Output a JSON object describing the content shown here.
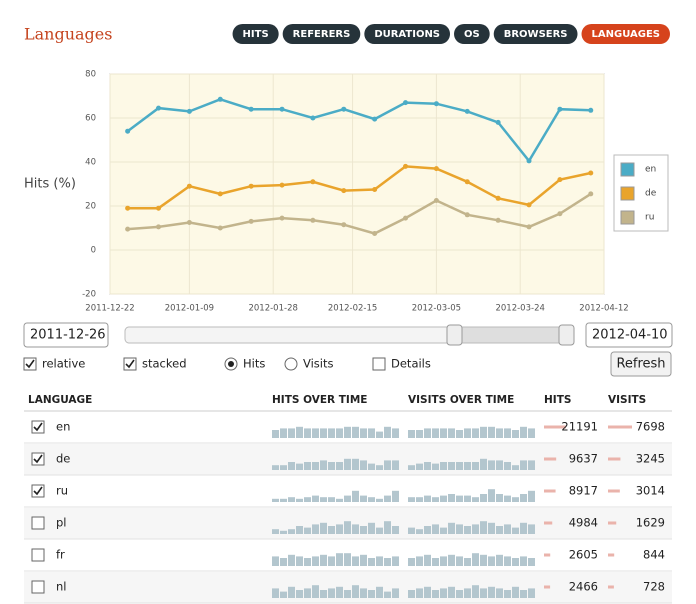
{
  "header": {
    "title": "Languages",
    "tabs": [
      "HITS",
      "REFERERS",
      "DURATIONS",
      "OS",
      "BROWSERS",
      "LANGUAGES"
    ],
    "active_tab": 5
  },
  "chart_data": {
    "type": "line",
    "ylabel": "Hits (%)",
    "x": [
      "2011-12-26",
      "2012-01-02",
      "2012-01-09",
      "2012-01-16",
      "2012-01-23",
      "2012-01-30",
      "2012-02-06",
      "2012-02-13",
      "2012-02-20",
      "2012-02-27",
      "2012-03-05",
      "2012-03-12",
      "2012-03-19",
      "2012-03-26",
      "2012-04-02",
      "2012-04-09"
    ],
    "xlim": [
      "2011-12-22",
      "2012-04-12"
    ],
    "xticks": [
      "2011-12-22",
      "2012-01-09",
      "2012-01-28",
      "2012-02-15",
      "2012-03-05",
      "2012-03-24",
      "2012-04-12"
    ],
    "ylim": [
      -20,
      80
    ],
    "yticks": [
      -20,
      0,
      20,
      40,
      60,
      80
    ],
    "grid": true,
    "legend": "right",
    "series": [
      {
        "name": "en",
        "color": "#4bacc6",
        "values": [
          54,
          64.5,
          63,
          68.5,
          64,
          64,
          60,
          64,
          59.5,
          67,
          66.5,
          63,
          58,
          40.5,
          64,
          63.5
        ]
      },
      {
        "name": "de",
        "color": "#e9a42c",
        "values": [
          19,
          19,
          29,
          25.5,
          29,
          29.5,
          31,
          27,
          27.5,
          38,
          37,
          31,
          23.5,
          20.5,
          32,
          35
        ]
      },
      {
        "name": "ru",
        "color": "#c2b48c",
        "values": [
          9.5,
          10.5,
          12.5,
          10,
          13,
          14.5,
          13.5,
          11.5,
          7.5,
          14.5,
          22.5,
          16,
          13.5,
          10.5,
          16.5,
          25.5
        ]
      }
    ]
  },
  "controls": {
    "start": "2011-12-26",
    "end": "2012-04-10",
    "options": [
      {
        "label": "relative",
        "kind": "checkbox",
        "checked": true
      },
      {
        "label": "stacked",
        "kind": "checkbox",
        "checked": true
      },
      {
        "label": "Hits",
        "kind": "radio",
        "checked": true
      },
      {
        "label": "Visits",
        "kind": "radio",
        "checked": false
      },
      {
        "label": "Details",
        "kind": "checkbox",
        "checked": false
      }
    ],
    "refresh": "Refresh"
  },
  "table": {
    "columns": [
      "LANGUAGE",
      "HITS OVER TIME",
      "VISITS OVER TIME",
      "HITS",
      "VISITS"
    ],
    "rows": [
      {
        "language": "en",
        "checked": true,
        "hits": 21191,
        "visits": 7698,
        "hits_trend": [
          5,
          6,
          6,
          7,
          6,
          6,
          6,
          6,
          6,
          7,
          7,
          6,
          6,
          4,
          7,
          6
        ],
        "visits_trend": [
          5,
          5,
          6,
          6,
          6,
          6,
          5,
          6,
          6,
          7,
          7,
          6,
          6,
          5,
          7,
          6
        ]
      },
      {
        "language": "de",
        "checked": true,
        "hits": 9637,
        "visits": 3245,
        "hits_trend": [
          3,
          3,
          5,
          4,
          5,
          5,
          6,
          5,
          5,
          7,
          7,
          6,
          4,
          3,
          6,
          6
        ],
        "visits_trend": [
          3,
          4,
          5,
          4,
          5,
          5,
          5,
          5,
          5,
          7,
          6,
          6,
          5,
          3,
          6,
          6
        ]
      },
      {
        "language": "ru",
        "checked": true,
        "hits": 8917,
        "visits": 3014,
        "hits_trend": [
          2,
          2,
          3,
          2,
          3,
          4,
          3,
          3,
          2,
          4,
          7,
          4,
          3,
          2,
          4,
          7
        ],
        "visits_trend": [
          3,
          3,
          4,
          3,
          4,
          5,
          4,
          4,
          3,
          5,
          8,
          5,
          4,
          3,
          5,
          7
        ]
      },
      {
        "language": "pl",
        "checked": false,
        "hits": 4984,
        "visits": 1629,
        "hits_trend": [
          3,
          2,
          3,
          5,
          4,
          6,
          7,
          5,
          6,
          8,
          6,
          5,
          7,
          4,
          8,
          5
        ],
        "visits_trend": [
          4,
          3,
          5,
          6,
          4,
          7,
          6,
          5,
          6,
          8,
          7,
          5,
          6,
          4,
          7,
          6
        ]
      },
      {
        "language": "fr",
        "checked": false,
        "hits": 2605,
        "visits": 844,
        "hits_trend": [
          6,
          5,
          7,
          6,
          5,
          6,
          7,
          6,
          8,
          8,
          6,
          7,
          5,
          6,
          5,
          6
        ],
        "visits_trend": [
          5,
          6,
          7,
          5,
          6,
          7,
          6,
          5,
          8,
          7,
          6,
          7,
          6,
          5,
          6,
          5
        ]
      },
      {
        "language": "nl",
        "checked": false,
        "hits": 2466,
        "visits": 728,
        "hits_trend": [
          6,
          4,
          7,
          5,
          6,
          8,
          5,
          6,
          7,
          5,
          8,
          6,
          5,
          7,
          4,
          6
        ],
        "visits_trend": [
          5,
          6,
          7,
          5,
          6,
          7,
          5,
          6,
          8,
          6,
          7,
          6,
          5,
          7,
          5,
          6
        ]
      }
    ]
  }
}
